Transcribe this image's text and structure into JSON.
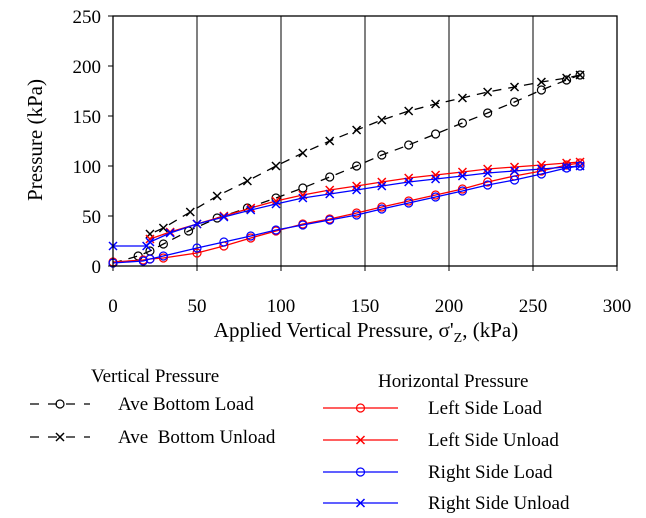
{
  "chart_data": {
    "type": "line",
    "xlabel": "Applied Vertical Pressure, σ'",
    "xlabel_sub": "Z",
    "xlabel_tail": ", (kPa)",
    "ylabel": "Pressure (kPa)",
    "xlim": [
      0,
      300
    ],
    "ylim": [
      0,
      250
    ],
    "x_ticks": [
      0,
      50,
      100,
      150,
      200,
      250,
      300
    ],
    "y_ticks": [
      0,
      50,
      100,
      150,
      200,
      250
    ],
    "grid": "vertical",
    "legend_groups": [
      {
        "title": "Vertical Pressure",
        "placement": "bottom-left"
      },
      {
        "title": "Horizontal Pressure",
        "placement": "bottom-right"
      }
    ],
    "series": [
      {
        "name": "Ave Bottom Load",
        "color": "#000000",
        "line": "dashed",
        "marker": "circle",
        "x": [
          0,
          15,
          22,
          30,
          45,
          62,
          80,
          97,
          113,
          129,
          145,
          160,
          176,
          192,
          208,
          223,
          239,
          255,
          270,
          278
        ],
        "y": [
          3,
          10,
          15,
          22,
          35,
          48,
          58,
          68,
          78,
          89,
          100,
          111,
          121,
          132,
          143,
          153,
          164,
          176,
          186,
          191
        ]
      },
      {
        "name": "Ave  Bottom Unload",
        "color": "#000000",
        "line": "dashed",
        "marker": "x",
        "x": [
          278,
          270,
          255,
          239,
          223,
          208,
          192,
          176,
          160,
          145,
          129,
          113,
          97,
          80,
          62,
          46,
          30,
          22
        ],
        "y": [
          191,
          188,
          184,
          179,
          174,
          168,
          162,
          155,
          146,
          136,
          125,
          113,
          100,
          85,
          70,
          54,
          38,
          32
        ]
      },
      {
        "name": "Left Side Load",
        "color": "#ff0000",
        "line": "solid",
        "marker": "circle",
        "x": [
          0,
          18,
          22,
          30,
          50,
          66,
          82,
          97,
          113,
          129,
          145,
          160,
          176,
          192,
          208,
          223,
          239,
          255,
          270,
          278
        ],
        "y": [
          4,
          6,
          7,
          8,
          13,
          20,
          28,
          35,
          42,
          47,
          53,
          59,
          65,
          71,
          77,
          84,
          90,
          95,
          101,
          103
        ]
      },
      {
        "name": "Left Side Unload",
        "color": "#ff0000",
        "line": "solid",
        "marker": "x",
        "x": [
          278,
          270,
          255,
          239,
          223,
          208,
          192,
          176,
          160,
          145,
          129,
          113,
          97,
          82,
          66,
          50,
          34,
          22
        ],
        "y": [
          104,
          103,
          101,
          99,
          97,
          94,
          91,
          88,
          84,
          80,
          76,
          71,
          65,
          58,
          50,
          42,
          34,
          27
        ]
      },
      {
        "name": "Right Side Load",
        "color": "#0000ff",
        "line": "solid",
        "marker": "circle",
        "x": [
          0,
          18,
          22,
          30,
          50,
          66,
          82,
          97,
          113,
          129,
          145,
          160,
          176,
          192,
          208,
          223,
          239,
          255,
          270,
          278
        ],
        "y": [
          3,
          5,
          7,
          10,
          18,
          24,
          30,
          36,
          41,
          46,
          51,
          57,
          63,
          69,
          75,
          81,
          86,
          92,
          98,
          100
        ]
      },
      {
        "name": "Right Side Unload",
        "color": "#0000ff",
        "line": "solid",
        "marker": "x",
        "x": [
          278,
          270,
          255,
          239,
          223,
          208,
          192,
          176,
          160,
          145,
          129,
          113,
          97,
          82,
          66,
          50,
          34,
          22,
          20,
          0
        ],
        "y": [
          100,
          99,
          97,
          95,
          93,
          90,
          87,
          84,
          80,
          76,
          72,
          68,
          62,
          56,
          49,
          42,
          33,
          24,
          20,
          20
        ]
      }
    ]
  }
}
